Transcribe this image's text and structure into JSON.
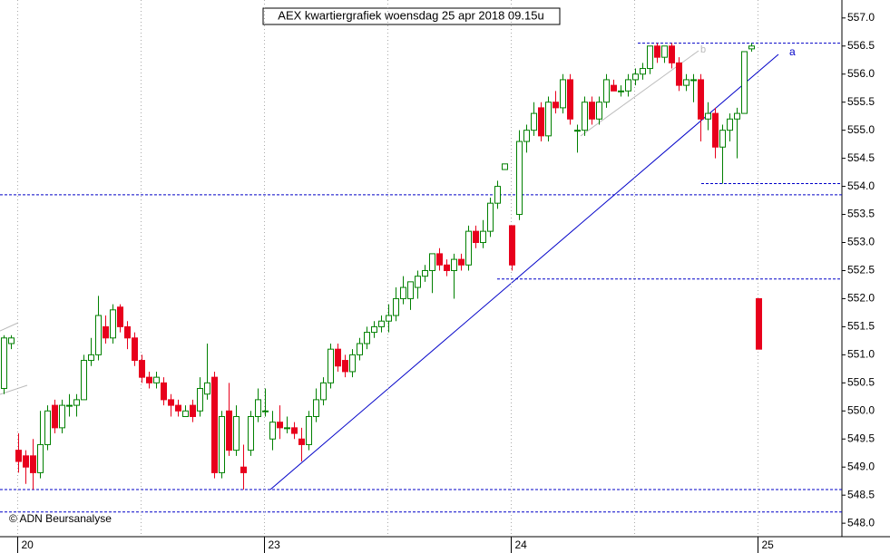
{
  "chart_data": {
    "type": "candlestick",
    "title": "AEX kwartiergrafiek woensdag 25 apr 2018 09.15u",
    "copyright": "© ADN Beursanalyse",
    "annotations": [
      "a",
      "b"
    ],
    "up_color": "#008000",
    "down_color": "#e8001c",
    "categories": [
      null,
      null,
      "20",
      null,
      null,
      null,
      null,
      null,
      null,
      null,
      null,
      null,
      null,
      null,
      null,
      null,
      null,
      null,
      null,
      null,
      null,
      null,
      null,
      null,
      null,
      null,
      null,
      null,
      null,
      null,
      null,
      null,
      null,
      null,
      null,
      null,
      "23",
      null,
      null,
      null,
      null,
      null,
      null,
      null,
      null,
      null,
      null,
      null,
      null,
      null,
      null,
      null,
      null,
      null,
      null,
      null,
      null,
      null,
      null,
      null,
      null,
      null,
      null,
      null,
      null,
      null,
      null,
      null,
      null,
      null,
      "24",
      null,
      null,
      null,
      null,
      null,
      null,
      null,
      null,
      null,
      null,
      null,
      null,
      null,
      null,
      null,
      null,
      null,
      null,
      null,
      null,
      null,
      null,
      null,
      null,
      null,
      null,
      null,
      null,
      null,
      null,
      null,
      null,
      null,
      "25"
    ],
    "open": [
      550.4,
      551.2,
      549.3,
      549.2,
      549.2,
      548.9,
      549.4,
      550.1,
      549.7,
      550.1,
      550.1,
      550.2,
      550.9,
      551.0,
      551.5,
      551.3,
      551.85,
      551.5,
      551.3,
      550.9,
      550.6,
      550.5,
      550.5,
      550.2,
      550.1,
      549.9,
      550.1,
      550.0,
      550.3,
      550.6,
      548.9,
      550.0,
      549.3,
      549.0,
      549.3,
      549.9,
      550.0,
      549.5,
      549.8,
      549.7,
      549.7,
      549.5,
      549.4,
      549.9,
      550.2,
      550.5,
      551.1,
      550.9,
      550.7,
      551.0,
      551.2,
      551.4,
      551.5,
      551.6,
      551.7,
      552.0,
      552.0,
      552.2,
      552.4,
      552.5,
      552.8,
      552.6,
      552.5,
      552.7,
      552.6,
      553.2,
      553.0,
      553.2,
      553.7,
      554.3,
      553.3,
      553.5,
      554.8,
      555.0,
      555.4,
      554.9,
      555.5,
      555.4,
      555.9,
      555.0,
      555.0,
      555.5,
      555.2,
      555.5,
      555.8,
      555.7,
      555.7,
      555.9,
      556.0,
      556.1,
      556.5,
      556.3,
      556.5,
      556.2,
      555.8,
      555.9,
      555.9,
      555.2,
      555.3,
      554.7,
      555.0,
      555.2,
      555.3,
      556.45,
      552.0
    ],
    "high": [
      551.35,
      551.35,
      549.6,
      549.3,
      549.5,
      550.0,
      550.1,
      550.2,
      550.2,
      550.3,
      550.3,
      551.0,
      551.3,
      552.05,
      551.7,
      551.9,
      551.9,
      551.6,
      551.4,
      551.0,
      550.7,
      550.7,
      550.6,
      550.3,
      550.2,
      550.1,
      550.2,
      550.6,
      551.2,
      550.7,
      550.0,
      550.5,
      550.1,
      549.4,
      550.0,
      550.4,
      550.4,
      550.0,
      550.1,
      549.9,
      549.8,
      549.7,
      550.0,
      550.4,
      550.6,
      551.2,
      551.2,
      551.0,
      551.1,
      551.3,
      551.5,
      551.6,
      551.7,
      551.9,
      552.2,
      552.4,
      552.3,
      552.5,
      552.6,
      552.8,
      552.9,
      552.7,
      552.8,
      552.8,
      553.3,
      553.3,
      553.4,
      553.8,
      554.1,
      554.4,
      553.3,
      555.0,
      555.1,
      555.5,
      555.5,
      555.6,
      555.7,
      556.0,
      556.0,
      555.1,
      555.6,
      555.6,
      555.6,
      556.0,
      555.9,
      555.8,
      556.0,
      556.1,
      556.2,
      556.5,
      556.55,
      556.5,
      556.55,
      556.3,
      556.0,
      556.0,
      556.0,
      555.5,
      555.4,
      555.1,
      555.3,
      555.4,
      556.4,
      556.55,
      552.0
    ],
    "low": [
      550.3,
      551.1,
      548.9,
      548.7,
      548.6,
      548.8,
      549.3,
      549.6,
      549.6,
      549.9,
      549.9,
      550.2,
      550.8,
      550.9,
      551.2,
      551.2,
      551.4,
      551.1,
      550.8,
      550.5,
      550.4,
      550.4,
      550.1,
      549.9,
      549.9,
      549.9,
      549.8,
      549.9,
      550.2,
      548.8,
      548.8,
      549.2,
      549.2,
      548.6,
      549.2,
      549.8,
      549.9,
      549.3,
      549.5,
      549.6,
      549.5,
      549.1,
      549.3,
      549.8,
      550.1,
      550.4,
      550.7,
      550.6,
      550.6,
      550.9,
      551.1,
      551.3,
      551.4,
      551.4,
      551.6,
      551.9,
      551.8,
      552.0,
      552.3,
      552.1,
      552.5,
      552.4,
      552.0,
      552.5,
      552.5,
      552.9,
      552.9,
      553.1,
      553.6,
      554.3,
      552.5,
      553.4,
      554.6,
      554.9,
      554.8,
      554.8,
      555.3,
      555.3,
      555.1,
      554.6,
      554.9,
      555.1,
      555.1,
      555.4,
      555.7,
      555.6,
      555.6,
      555.8,
      555.9,
      556.0,
      556.2,
      556.2,
      556.1,
      555.7,
      555.7,
      555.5,
      554.8,
      555.0,
      554.5,
      554.05,
      554.8,
      554.5,
      555.3,
      556.4,
      551.1
    ],
    "close": [
      551.3,
      551.3,
      549.1,
      549.0,
      548.9,
      549.4,
      550.0,
      549.7,
      550.1,
      550.1,
      550.2,
      550.9,
      551.0,
      551.7,
      551.3,
      551.8,
      551.5,
      551.3,
      550.9,
      550.6,
      550.5,
      550.6,
      550.2,
      550.1,
      550.0,
      550.0,
      549.9,
      550.4,
      550.5,
      548.9,
      549.9,
      549.3,
      549.9,
      548.9,
      549.9,
      550.2,
      550.0,
      549.8,
      549.7,
      549.7,
      549.6,
      549.4,
      549.9,
      550.2,
      550.5,
      551.1,
      550.8,
      550.7,
      551.0,
      551.2,
      551.4,
      551.5,
      551.6,
      551.7,
      552.0,
      552.2,
      552.3,
      552.4,
      552.5,
      552.8,
      552.6,
      552.5,
      552.7,
      552.6,
      553.2,
      553.0,
      553.2,
      553.7,
      554.0,
      554.4,
      552.6,
      554.8,
      555.0,
      555.3,
      554.9,
      555.5,
      555.4,
      555.9,
      555.2,
      555.0,
      555.5,
      555.2,
      555.5,
      555.9,
      555.7,
      555.7,
      555.9,
      556.0,
      556.1,
      556.5,
      556.3,
      556.5,
      556.2,
      555.8,
      555.9,
      555.9,
      555.2,
      555.3,
      554.7,
      555.0,
      555.2,
      555.3,
      556.4,
      556.5,
      551.1
    ],
    "levels": [
      556.55,
      554.05,
      553.85,
      552.35,
      548.6,
      548.2
    ],
    "ylim": [
      547.76,
      557.32
    ],
    "yticks": [
      {
        "value": 548.0,
        "label": "548.0"
      },
      548.5,
      {
        "value": 549.0,
        "label": "549.0"
      },
      549.5,
      {
        "value": 550.0,
        "label": "550.0"
      },
      550.5,
      {
        "value": 551.0,
        "label": "551.0"
      },
      551.5,
      {
        "value": 552.0,
        "label": "552.0"
      },
      552.5,
      {
        "value": 553.0,
        "label": "553.0"
      },
      553.5,
      {
        "value": 554.0,
        "label": "554.0"
      },
      554.5,
      {
        "value": 555.0,
        "label": "555.0"
      },
      555.5,
      {
        "value": 556.0,
        "label": "556.0"
      },
      556.5,
      {
        "value": 557.0,
        "label": "557.0"
      }
    ]
  }
}
